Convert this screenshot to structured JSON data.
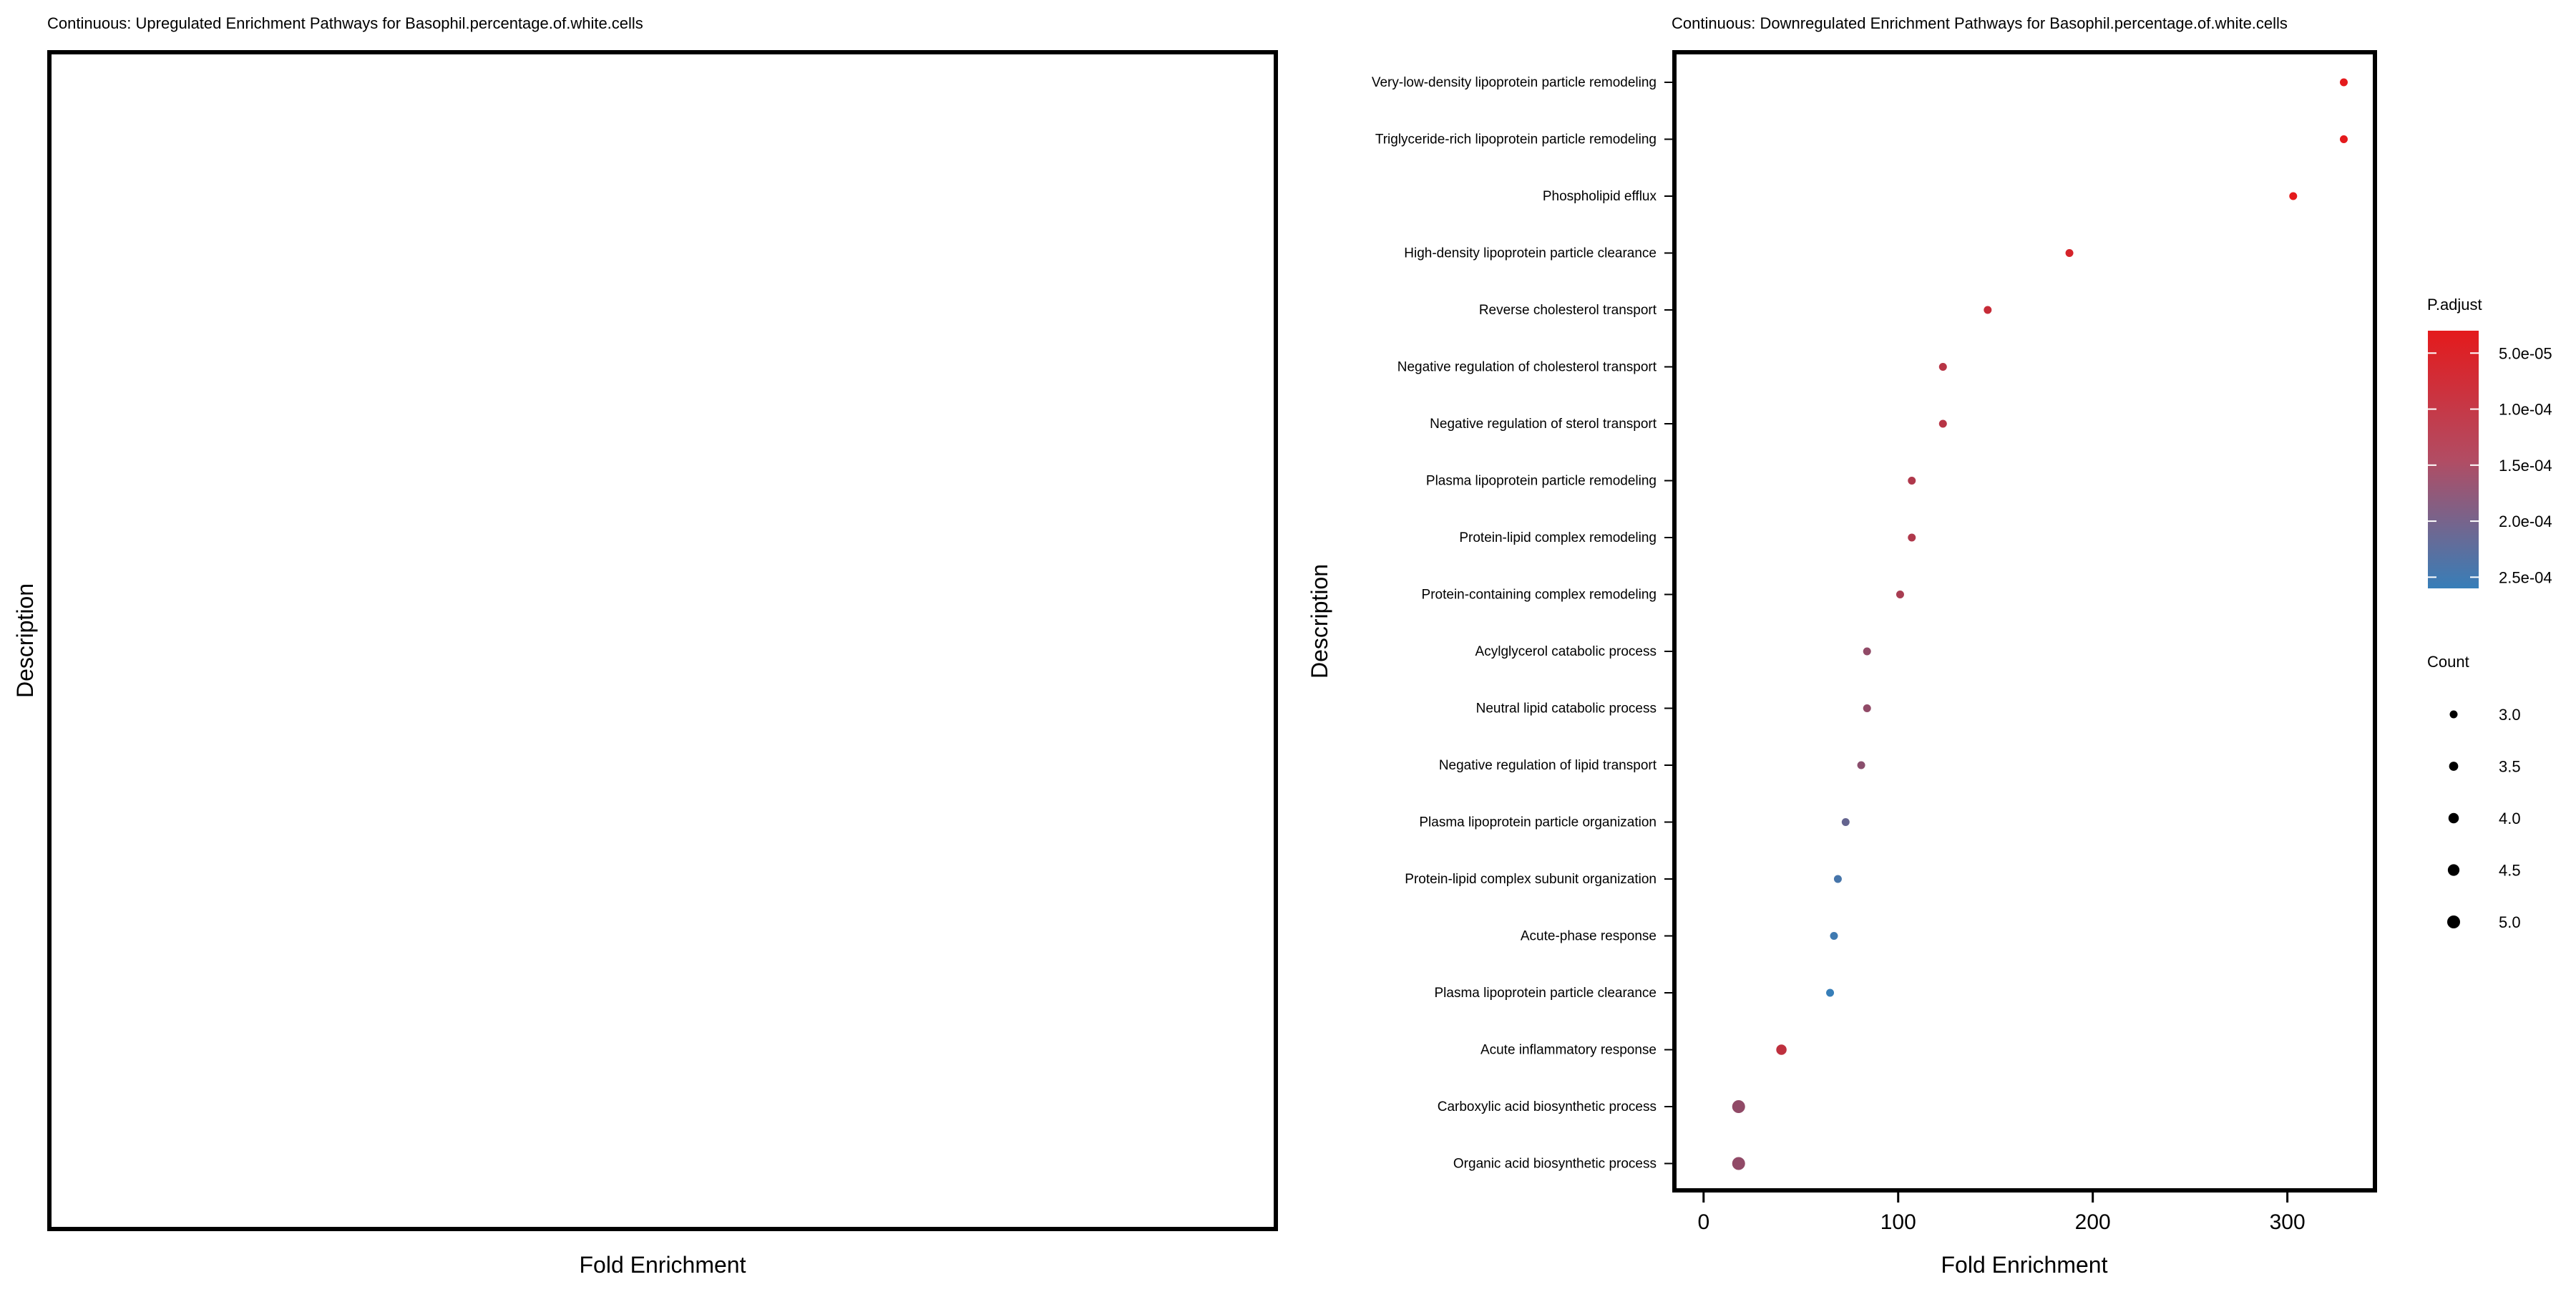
{
  "charts": [
    {
      "title": "Continuous: Upregulated Enrichment Pathways for Basophil.percentage.of.white.cells",
      "xlabel": "Fold Enrichment",
      "ylabel": "Description"
    },
    {
      "title": "Continuous: Downregulated Enrichment Pathways for Basophil.percentage.of.white.cells",
      "xlabel": "Fold Enrichment",
      "ylabel": "Description",
      "legend": {
        "color_title": "P.adjust",
        "color_ticks": [
          "5.0e-05",
          "1.0e-04",
          "1.5e-04",
          "2.0e-04",
          "2.5e-04"
        ],
        "size_title": "Count",
        "size_ticks": [
          "3.0",
          "3.5",
          "4.0",
          "4.5",
          "5.0"
        ]
      }
    }
  ],
  "chart_data": [
    {
      "type": "scatter",
      "title": "Continuous: Upregulated Enrichment Pathways for Basophil.percentage.of.white.cells",
      "xlabel": "Fold Enrichment",
      "ylabel": "Description",
      "categories": [],
      "points": []
    },
    {
      "type": "scatter",
      "title": "Continuous: Downregulated Enrichment Pathways for Basophil.percentage.of.white.cells",
      "xlabel": "Fold Enrichment",
      "ylabel": "Description",
      "xlim": [
        -15,
        345
      ],
      "xticks": [
        0,
        100,
        200,
        300
      ],
      "color_scale": {
        "variable": "P.adjust",
        "low_color": "#377eb8",
        "high_color": "#e41a1c",
        "range": [
          3e-05,
          0.00026
        ]
      },
      "size_scale": {
        "variable": "Count",
        "range": [
          3,
          5
        ]
      },
      "legend_position": "right",
      "grid": false,
      "categories": [
        "Very-low-density lipoprotein particle remodeling",
        "Triglyceride-rich lipoprotein particle remodeling",
        "Phospholipid efflux",
        "High-density lipoprotein particle clearance",
        "Reverse cholesterol transport",
        "Negative regulation of cholesterol transport",
        "Negative regulation of sterol transport",
        "Plasma lipoprotein particle remodeling",
        "Protein-lipid complex remodeling",
        "Protein-containing complex remodeling",
        "Acylglycerol catabolic process",
        "Neutral lipid catabolic process",
        "Negative regulation of lipid transport",
        "Plasma lipoprotein particle organization",
        "Protein-lipid complex subunit organization",
        "Acute-phase response",
        "Plasma lipoprotein particle clearance",
        "Acute inflammatory response",
        "Carboxylic acid biosynthetic process",
        "Organic acid biosynthetic process"
      ],
      "points": [
        {
          "description": "Very-low-density lipoprotein particle remodeling",
          "fold_enrichment": 329,
          "p_adjust": 3e-05,
          "count": 3
        },
        {
          "description": "Triglyceride-rich lipoprotein particle remodeling",
          "fold_enrichment": 329,
          "p_adjust": 3e-05,
          "count": 3
        },
        {
          "description": "Phospholipid efflux",
          "fold_enrichment": 303,
          "p_adjust": 3e-05,
          "count": 3
        },
        {
          "description": "High-density lipoprotein particle clearance",
          "fold_enrichment": 188,
          "p_adjust": 5e-05,
          "count": 3
        },
        {
          "description": "Reverse cholesterol transport",
          "fold_enrichment": 146,
          "p_adjust": 7e-05,
          "count": 3
        },
        {
          "description": "Negative regulation of cholesterol transport",
          "fold_enrichment": 123,
          "p_adjust": 9e-05,
          "count": 3
        },
        {
          "description": "Negative regulation of sterol transport",
          "fold_enrichment": 123,
          "p_adjust": 9e-05,
          "count": 3
        },
        {
          "description": "Plasma lipoprotein particle remodeling",
          "fold_enrichment": 107,
          "p_adjust": 0.0001,
          "count": 3
        },
        {
          "description": "Protein-lipid complex remodeling",
          "fold_enrichment": 107,
          "p_adjust": 0.0001,
          "count": 3
        },
        {
          "description": "Protein-containing complex remodeling",
          "fold_enrichment": 101,
          "p_adjust": 0.00011,
          "count": 3
        },
        {
          "description": "Acylglycerol catabolic process",
          "fold_enrichment": 84,
          "p_adjust": 0.00014,
          "count": 3
        },
        {
          "description": "Neutral lipid catabolic process",
          "fold_enrichment": 84,
          "p_adjust": 0.00014,
          "count": 3
        },
        {
          "description": "Negative regulation of lipid transport",
          "fold_enrichment": 81,
          "p_adjust": 0.00015,
          "count": 3
        },
        {
          "description": "Plasma lipoprotein particle organization",
          "fold_enrichment": 73,
          "p_adjust": 0.0002,
          "count": 3
        },
        {
          "description": "Protein-lipid complex subunit organization",
          "fold_enrichment": 69,
          "p_adjust": 0.00024,
          "count": 3
        },
        {
          "description": "Acute-phase response",
          "fold_enrichment": 67,
          "p_adjust": 0.00025,
          "count": 3
        },
        {
          "description": "Plasma lipoprotein particle clearance",
          "fold_enrichment": 65,
          "p_adjust": 0.00026,
          "count": 3
        },
        {
          "description": "Acute inflammatory response",
          "fold_enrichment": 40,
          "p_adjust": 8e-05,
          "count": 4
        },
        {
          "description": "Carboxylic acid biosynthetic process",
          "fold_enrichment": 18,
          "p_adjust": 0.00014,
          "count": 5
        },
        {
          "description": "Organic acid biosynthetic process",
          "fold_enrichment": 18,
          "p_adjust": 0.00014,
          "count": 5
        }
      ]
    }
  ]
}
